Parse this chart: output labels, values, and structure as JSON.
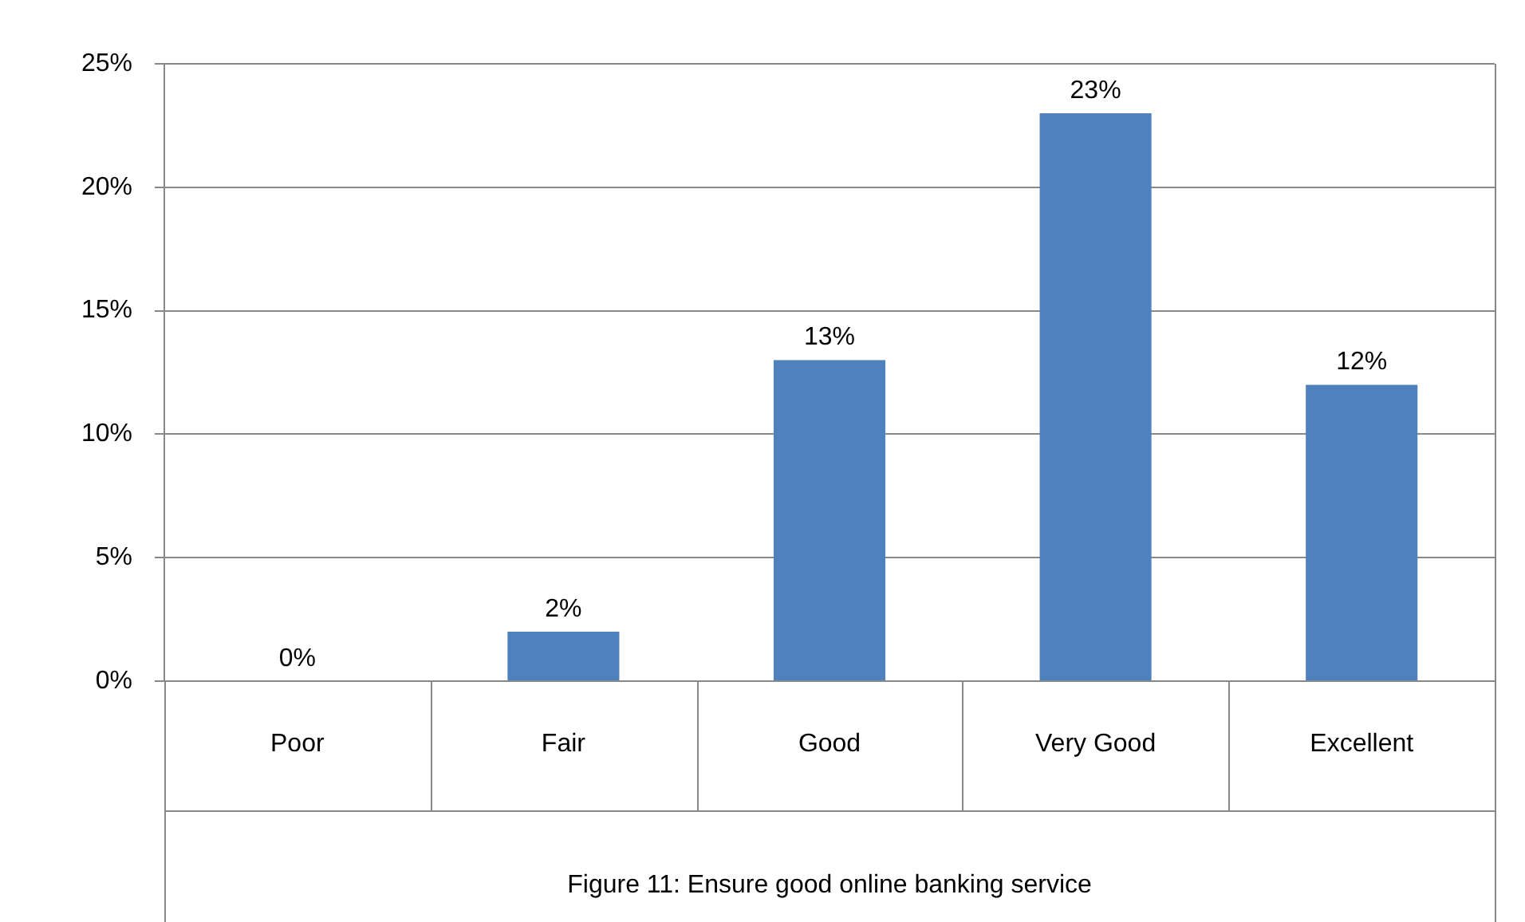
{
  "chart_data": {
    "type": "bar",
    "categories": [
      "Poor",
      "Fair",
      "Good",
      "Very Good",
      "Excellent"
    ],
    "values": [
      0,
      2,
      13,
      23,
      12
    ],
    "color": "#4f81bd",
    "value_labels": [
      "0%",
      "2%",
      "13%",
      "23%",
      "12%"
    ],
    "ylim": [
      0,
      25
    ],
    "yticks": [
      {
        "value": 0,
        "label": "0%"
      },
      {
        "value": 5,
        "label": "5%"
      },
      {
        "value": 10,
        "label": "10%"
      },
      {
        "value": 15,
        "label": "15%"
      },
      {
        "value": 20,
        "label": "20%"
      },
      {
        "value": 25,
        "label": "25%"
      }
    ],
    "grid": "y",
    "legend": false,
    "annotations": [
      "Figure 11: Ensure good online banking service"
    ]
  }
}
